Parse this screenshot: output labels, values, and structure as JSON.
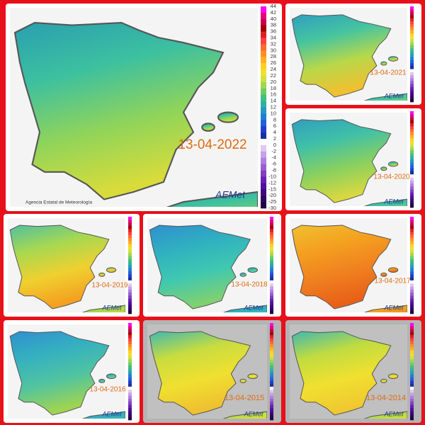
{
  "maps": [
    {
      "date": "13-04-2022"
    },
    {
      "date": "13-04-2021"
    },
    {
      "date": "13-04-2020"
    },
    {
      "date": "13-04-2019"
    },
    {
      "date": "13-04-2018"
    },
    {
      "date": "13-04-2017"
    },
    {
      "date": "13-04-2016"
    },
    {
      "date": "13-04-2015"
    },
    {
      "date": "13-04-2014"
    }
  ],
  "logo": "AEMet",
  "agency": "Agencia Estatal de Meteorología",
  "colorbar": [
    "44",
    "42",
    "40",
    "38",
    "36",
    "34",
    "32",
    "30",
    "28",
    "26",
    "24",
    "22",
    "20",
    "18",
    "16",
    "14",
    "12",
    "10",
    "8",
    "6",
    "4",
    "2",
    "0",
    "-2",
    "-4",
    "-6",
    "-8",
    "-10",
    "-12",
    "-15",
    "-20",
    "-25",
    "-30"
  ]
}
